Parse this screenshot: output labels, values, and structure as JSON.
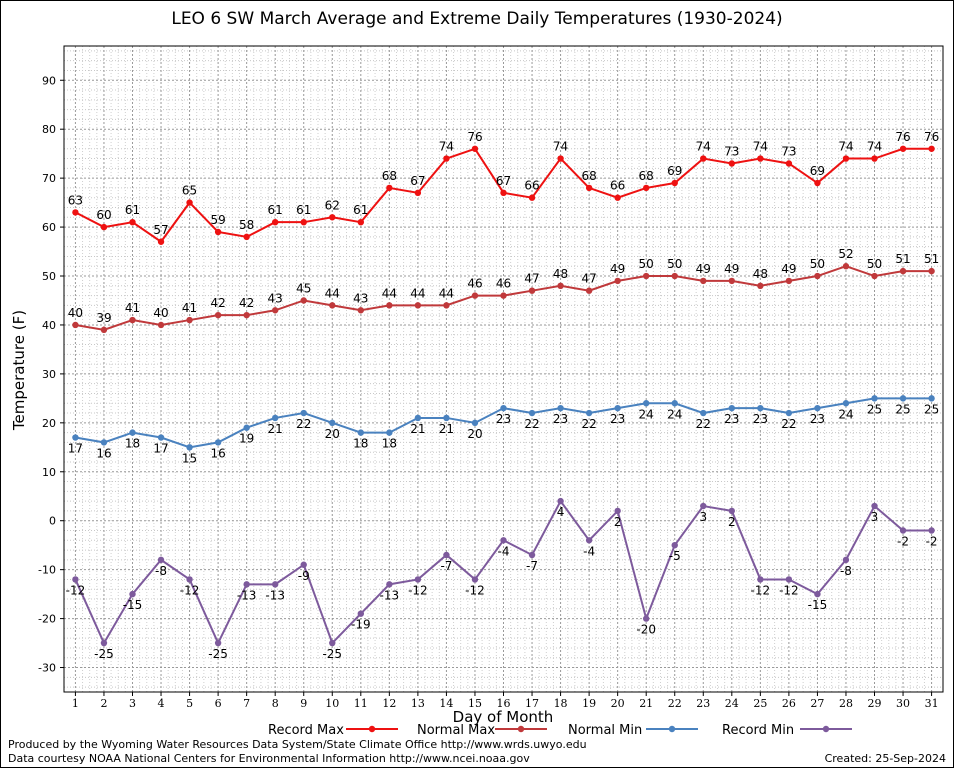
{
  "page": {
    "credits": [
      "Produced by the Wyoming Water Resources Data System/State Climate Office http://www.wrds.uwyo.edu",
      "Data courtesy NOAA National Centers for Environmental Information http://www.ncei.noaa.gov"
    ],
    "created": "Created:  25-Sep-2024"
  },
  "chart_data": {
    "type": "line",
    "title": "LEO 6 SW March Average and Extreme Daily Temperatures (1930-2024)",
    "xlabel": "Day of Month",
    "ylabel": "Temperature (F)",
    "x": [
      1,
      2,
      3,
      4,
      5,
      6,
      7,
      8,
      9,
      10,
      11,
      12,
      13,
      14,
      15,
      16,
      17,
      18,
      19,
      20,
      21,
      22,
      23,
      24,
      25,
      26,
      27,
      28,
      29,
      30,
      31
    ],
    "xlim": [
      0.6,
      31.4
    ],
    "ylim": [
      -35,
      97
    ],
    "yticks": [
      -30,
      -20,
      -10,
      0,
      10,
      20,
      30,
      40,
      50,
      60,
      70,
      80,
      90
    ],
    "grid": true,
    "legend_position": "bottom",
    "series": [
      {
        "name": "Record Max",
        "color": "#ee1111",
        "values": [
          63,
          60,
          61,
          57,
          65,
          59,
          58,
          61,
          61,
          62,
          61,
          68,
          67,
          74,
          76,
          67,
          66,
          74,
          68,
          66,
          68,
          69,
          74,
          73,
          74,
          73,
          69,
          74,
          74,
          76,
          76
        ]
      },
      {
        "name": "Normal Max",
        "color": "#c0393b",
        "values": [
          40,
          39,
          41,
          40,
          41,
          42,
          42,
          43,
          45,
          44,
          43,
          44,
          44,
          44,
          46,
          46,
          47,
          48,
          47,
          49,
          50,
          50,
          49,
          49,
          48,
          49,
          50,
          52,
          50,
          51,
          51
        ]
      },
      {
        "name": "Normal Min",
        "color": "#4a82bf",
        "values": [
          17,
          16,
          18,
          17,
          15,
          16,
          19,
          21,
          22,
          20,
          18,
          18,
          21,
          21,
          20,
          23,
          22,
          23,
          22,
          23,
          24,
          24,
          22,
          23,
          23,
          22,
          23,
          24,
          25,
          25,
          25
        ]
      },
      {
        "name": "Record Min",
        "color": "#7d5a9c",
        "values": [
          -12,
          -25,
          -15,
          -8,
          -12,
          -25,
          -13,
          -13,
          -9,
          -25,
          -19,
          -13,
          -12,
          -7,
          -12,
          -4,
          -7,
          4,
          -4,
          2,
          -20,
          -5,
          3,
          2,
          -12,
          -12,
          -15,
          -8,
          3,
          -2,
          -2
        ]
      }
    ]
  }
}
